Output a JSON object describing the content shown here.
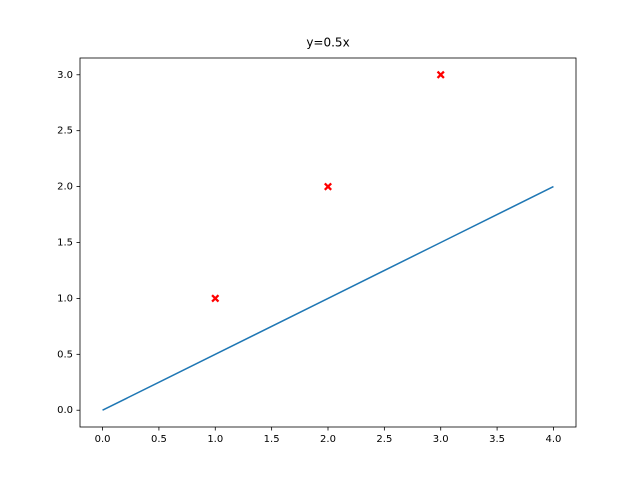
{
  "chart_data": {
    "type": "line",
    "title": "y=0.5x",
    "series": [
      {
        "type": "line",
        "color": "#1f77b4",
        "x": [
          0,
          1,
          2,
          3,
          4
        ],
        "values": [
          0,
          0.5,
          1,
          1.5,
          2
        ]
      },
      {
        "type": "scatter",
        "color": "#ff0000",
        "marker": "X",
        "x": [
          1,
          2,
          3
        ],
        "values": [
          1,
          2,
          3
        ]
      }
    ],
    "xlim": [
      -0.2,
      4.2
    ],
    "ylim": [
      -0.15,
      3.15
    ],
    "xticks": [
      {
        "value": 0,
        "label": "0.0"
      },
      {
        "value": 0.5,
        "label": "0.5"
      },
      {
        "value": 1,
        "label": "1.0"
      },
      {
        "value": 1.5,
        "label": "1.5"
      },
      {
        "value": 2,
        "label": "2.0"
      },
      {
        "value": 2.5,
        "label": "2.5"
      },
      {
        "value": 3,
        "label": "3.0"
      },
      {
        "value": 3.5,
        "label": "3.5"
      },
      {
        "value": 4,
        "label": "4.0"
      }
    ],
    "yticks": [
      {
        "value": 0,
        "label": "0.0"
      },
      {
        "value": 0.5,
        "label": "0.5"
      },
      {
        "value": 1,
        "label": "1.0"
      },
      {
        "value": 1.5,
        "label": "1.5"
      },
      {
        "value": 2,
        "label": "2.0"
      },
      {
        "value": 2.5,
        "label": "2.5"
      },
      {
        "value": 3,
        "label": "3.0"
      }
    ],
    "grid": false
  }
}
